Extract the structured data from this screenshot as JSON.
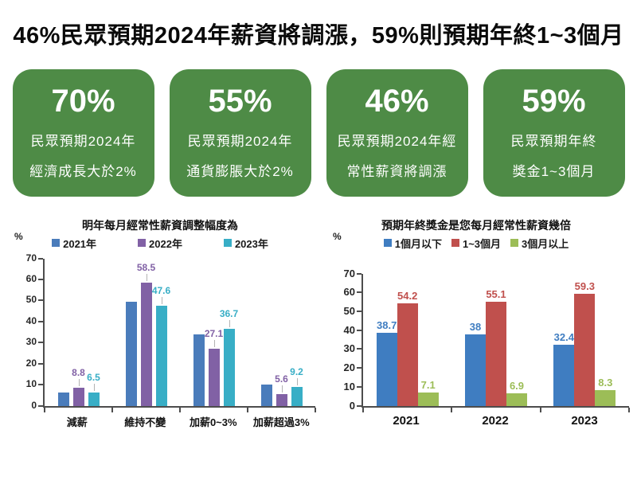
{
  "page": {
    "title": "46%民眾預期2024年薪資將調漲，59%則預期年終1~3個月"
  },
  "cards": {
    "color": "#4e8b46",
    "text_color": "#ffffff",
    "items": [
      {
        "value": "70%",
        "line1": "民眾預期2024年",
        "line2": "經濟成長大於2%"
      },
      {
        "value": "55%",
        "line1": "民眾預期2024年",
        "line2": "通貨膨脹大於2%"
      },
      {
        "value": "46%",
        "line1": "民眾預期2024年經",
        "line2": "常性薪資將調漲"
      },
      {
        "value": "59%",
        "line1": "民眾預期年終",
        "line2": "獎金1~3個月"
      }
    ]
  },
  "chart_data": [
    {
      "type": "bar",
      "title": "明年每月經常性薪資調整幅度為",
      "ylabel": "%",
      "xlabel": "",
      "ylim": [
        0,
        70
      ],
      "yticks": [
        0,
        10,
        20,
        30,
        40,
        50,
        60,
        70
      ],
      "grid": false,
      "legend_position": "top",
      "categories": [
        "減薪",
        "維持不變",
        "加薪0~3%",
        "加薪超過3%"
      ],
      "series": [
        {
          "name": "2021年",
          "color": "#4a7cbb",
          "values": [
            6.3,
            49.5,
            34.2,
            10.1
          ],
          "labels": [
            "",
            "",
            "",
            ""
          ]
        },
        {
          "name": "2022年",
          "color": "#8161a5",
          "values": [
            8.8,
            58.5,
            27.1,
            5.6
          ],
          "labels": [
            "8.8",
            "58.5",
            "27.1",
            "5.6"
          ]
        },
        {
          "name": "2023年",
          "color": "#38aec6",
          "values": [
            6.5,
            47.6,
            36.7,
            9.2
          ],
          "labels": [
            "6.5",
            "47.6",
            "36.7",
            "9.2"
          ]
        }
      ]
    },
    {
      "type": "bar",
      "title": "預期年終獎金是您每月經常性薪資幾倍",
      "ylabel": "%",
      "xlabel": "",
      "ylim": [
        0,
        70
      ],
      "yticks": [
        0,
        10,
        20,
        30,
        40,
        50,
        60,
        70
      ],
      "grid": false,
      "legend_position": "top",
      "categories": [
        "2021",
        "2022",
        "2023"
      ],
      "series": [
        {
          "name": "1個月以下",
          "color": "#3f7dc1",
          "values": [
            38.7,
            38,
            32.4
          ],
          "labels": [
            "38.7",
            "38",
            "32.4"
          ]
        },
        {
          "name": "1~3個月",
          "color": "#c0504d",
          "values": [
            54.2,
            55.1,
            59.3
          ],
          "labels": [
            "54.2",
            "55.1",
            "59.3"
          ]
        },
        {
          "name": "3個月以上",
          "color": "#9cbd57",
          "values": [
            7.1,
            6.9,
            8.3
          ],
          "labels": [
            "7.1",
            "6.9",
            "8.3"
          ]
        }
      ]
    }
  ]
}
